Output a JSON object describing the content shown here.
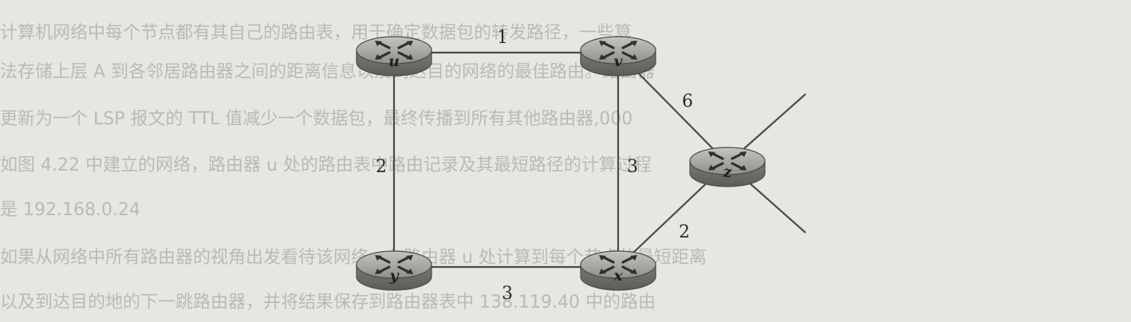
{
  "background_text": [
    "计算机网络中每个节点都有其自己的路由表，用于确定数据包的转发路径，一些算",
    "法存储上层 A 到各邻居路由器之间的距离信息以及到达目的网络的最佳路由。路由器",
    "更新为一个 LSP 报文的 TTL 值减少一个数据包，最终传播到所有其他路由器,000",
    "如图 4.22 中建立的网络，路由器 u 处的路由表中路由记录及其最短路径的计算过程",
    "是 192.168.0.24",
    "如果从网络中所有路由器的视角出发看待该网络，在路由器 u 处计算到每个节点的最短距离",
    "以及到达目的地的下一跳路由器，并将结果保存到路由器表中 138.119.40 中的路由"
  ],
  "routers": [
    {
      "id": "u",
      "label": "u"
    },
    {
      "id": "v",
      "label": "v"
    },
    {
      "id": "z",
      "label": "z"
    },
    {
      "id": "y",
      "label": "y"
    },
    {
      "id": "x",
      "label": "x"
    }
  ],
  "links": [
    {
      "from": "u",
      "to": "v",
      "weight": "1"
    },
    {
      "from": "u",
      "to": "y",
      "weight": "2"
    },
    {
      "from": "v",
      "to": "x",
      "weight": "3"
    },
    {
      "from": "v",
      "to": "z",
      "weight": "6"
    },
    {
      "from": "x",
      "to": "z",
      "weight": "2"
    },
    {
      "from": "y",
      "to": "x",
      "weight": "3"
    }
  ],
  "colors": {
    "background": "#e6e6e3",
    "router_body": "#8c8c89",
    "router_top": "#a9a9a6",
    "link": "#4b4b48"
  }
}
